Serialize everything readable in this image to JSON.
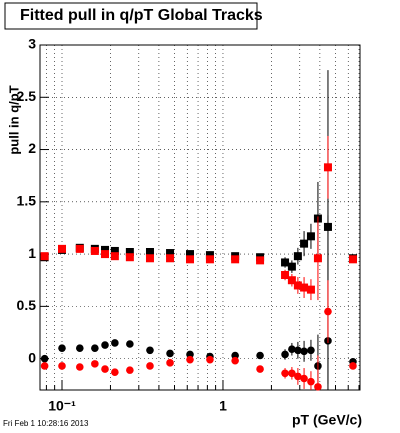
{
  "chart_data": {
    "type": "scatter",
    "title": "Fitted pull in q/pT  Global Tracks",
    "y_label": "pull in q/pT",
    "x_label": "pT (GeV/c)",
    "footer": "Fri Feb  1 10:28:16 2013",
    "log_x": true,
    "grid": true,
    "xlim": [
      0.073,
      7.1
    ],
    "ylim": [
      -0.3,
      3
    ],
    "xticks": [
      {
        "value": 0.1,
        "label": "10⁻¹"
      },
      1
    ],
    "xminor": [
      0.08,
      0.09,
      0.2,
      0.3,
      0.4,
      0.5,
      0.6,
      0.7,
      0.8,
      0.9,
      2,
      3,
      4,
      5,
      6,
      7
    ],
    "yticks": [
      0,
      0.5,
      1,
      1.5,
      2,
      2.5,
      3
    ],
    "x": [
      0.078,
      0.1,
      0.129,
      0.16,
      0.185,
      0.213,
      0.264,
      0.352,
      0.469,
      0.624,
      0.83,
      1.19,
      1.7,
      2.43,
      2.68,
      2.92,
      3.19,
      3.52,
      3.89,
      4.49,
      6.42
    ],
    "series": [
      {
        "color": "#000000",
        "marker": "square",
        "values": [
          0.97,
          1.04,
          1.06,
          1.05,
          1.04,
          1.03,
          1.02,
          1.02,
          1.01,
          1.0,
          0.99,
          0.98,
          0.97,
          0.92,
          0.88,
          0.98,
          1.1,
          1.17,
          1.34,
          1.26,
          0.96
        ],
        "errors": [
          0.02,
          0.02,
          0.02,
          0.02,
          0.02,
          0.02,
          0.02,
          0.02,
          0.02,
          0.02,
          0.02,
          0.02,
          0.03,
          0.05,
          0.06,
          0.08,
          0.12,
          0.12,
          0.35,
          1.5,
          0.02
        ]
      },
      {
        "color": "#ff0000",
        "marker": "square",
        "values": [
          0.98,
          1.05,
          1.05,
          1.03,
          1.0,
          0.98,
          0.97,
          0.96,
          0.96,
          0.95,
          0.95,
          0.95,
          0.94,
          0.8,
          0.75,
          0.7,
          0.68,
          0.66,
          0.96,
          1.83,
          0.95
        ],
        "errors": [
          0.02,
          0.02,
          0.02,
          0.02,
          0.02,
          0.02,
          0.02,
          0.02,
          0.02,
          0.02,
          0.02,
          0.02,
          0.03,
          0.05,
          0.06,
          0.08,
          0.1,
          0.1,
          0.4,
          0.3,
          0.02
        ]
      },
      {
        "color": "#000000",
        "marker": "circle",
        "values": [
          0.0,
          0.1,
          0.1,
          0.1,
          0.13,
          0.15,
          0.14,
          0.08,
          0.05,
          0.04,
          0.02,
          0.03,
          0.03,
          0.04,
          0.09,
          0.08,
          0.07,
          0.08,
          -0.07,
          0.17,
          -0.03
        ],
        "errors": [
          0.02,
          0.02,
          0.02,
          0.02,
          0.02,
          0.02,
          0.02,
          0.02,
          0.02,
          0.02,
          0.02,
          0.02,
          0.03,
          0.05,
          0.06,
          0.08,
          0.1,
          0.1,
          0.3,
          1.2,
          0.02
        ]
      },
      {
        "color": "#ff0000",
        "marker": "circle",
        "values": [
          -0.07,
          -0.07,
          -0.08,
          -0.05,
          -0.1,
          -0.13,
          -0.11,
          -0.07,
          -0.04,
          -0.01,
          -0.01,
          -0.02,
          -0.1,
          -0.14,
          -0.14,
          -0.17,
          -0.19,
          -0.22,
          -0.27,
          0.45,
          -0.07
        ],
        "errors": [
          0.02,
          0.02,
          0.02,
          0.02,
          0.02,
          0.02,
          0.02,
          0.02,
          0.02,
          0.02,
          0.02,
          0.02,
          0.03,
          0.05,
          0.06,
          0.08,
          0.1,
          0.1,
          0.3,
          0.3,
          0.02
        ]
      }
    ]
  }
}
